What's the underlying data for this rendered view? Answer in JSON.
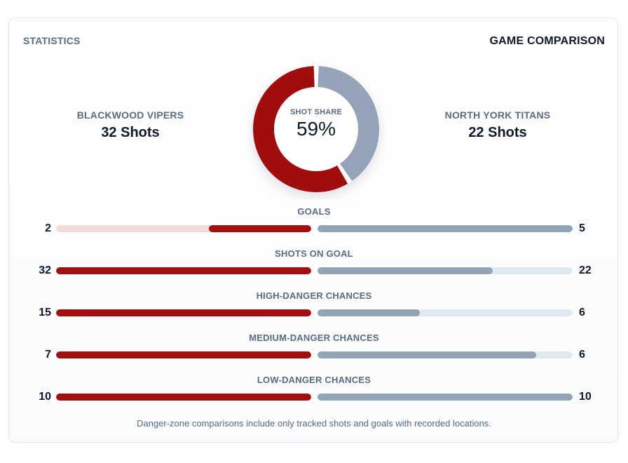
{
  "header": {
    "section_label": "STATISTICS",
    "title": "GAME COMPARISON"
  },
  "teams": {
    "home": {
      "name": "BLACKWOOD VIPERS",
      "shots_label": "32 Shots",
      "color": "#a10f0f"
    },
    "away": {
      "name": "NORTH YORK TITANS",
      "shots_label": "22 Shots",
      "color": "#94a3b8"
    }
  },
  "shot_share": {
    "caption": "SHOT SHARE",
    "value_label": "59%",
    "home_fraction": 0.59,
    "away_fraction": 0.41
  },
  "stats": [
    {
      "title": "GOALS",
      "home": "2",
      "away": "5",
      "home_value": 2,
      "away_value": 5
    },
    {
      "title": "SHOTS ON GOAL",
      "home": "32",
      "away": "22",
      "home_value": 32,
      "away_value": 22
    },
    {
      "title": "HIGH-DANGER CHANCES",
      "home": "15",
      "away": "6",
      "home_value": 15,
      "away_value": 6
    },
    {
      "title": "MEDIUM-DANGER CHANCES",
      "home": "7",
      "away": "6",
      "home_value": 7,
      "away_value": 6
    },
    {
      "title": "LOW-DANGER CHANCES",
      "home": "10",
      "away": "10",
      "home_value": 10,
      "away_value": 10
    }
  ],
  "footnote": "Danger-zone comparisons include only tracked shots and goals with recorded locations."
}
